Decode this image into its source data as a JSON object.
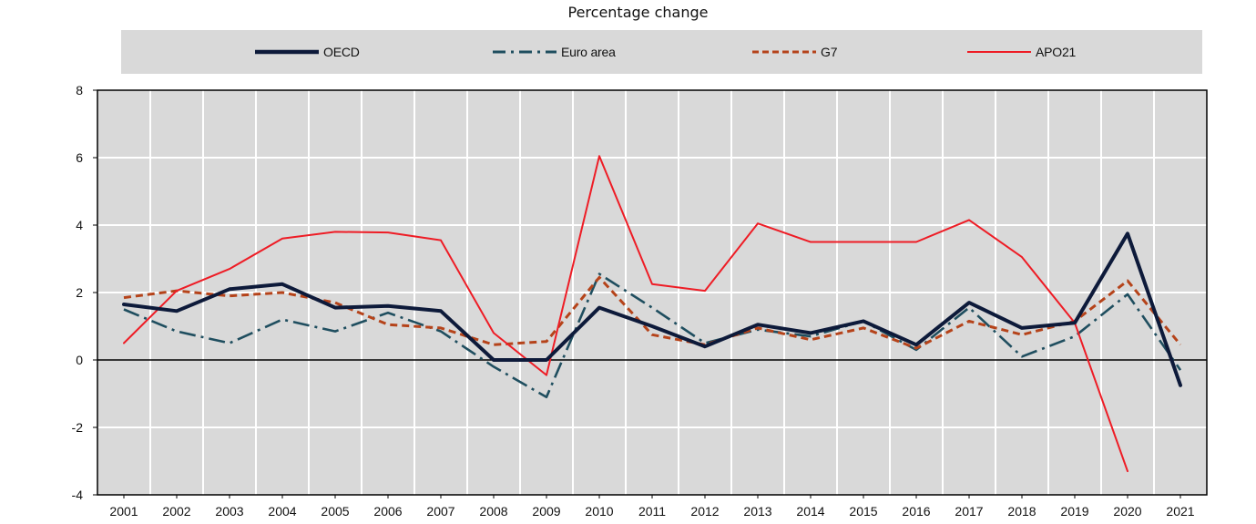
{
  "chart_data": {
    "type": "line",
    "title": "Percentage change",
    "xlabel": "",
    "ylabel": "",
    "x": [
      "2001",
      "2002",
      "2003",
      "2004",
      "2005",
      "2006",
      "2007",
      "2008",
      "2009",
      "2010",
      "2011",
      "2012",
      "2013",
      "2014",
      "2015",
      "2016",
      "2017",
      "2018",
      "2019",
      "2020",
      "2021"
    ],
    "ylim": [
      -4,
      8
    ],
    "yticks": [
      "8",
      "6",
      "4",
      "2",
      "0",
      "-2",
      "-4"
    ],
    "grid": true,
    "legend_position": "top",
    "series": [
      {
        "name": "OECD",
        "color": "#0d1a3a",
        "style": "solid-thick",
        "values": [
          1.65,
          1.45,
          2.1,
          2.25,
          1.55,
          1.6,
          1.45,
          0.0,
          0.0,
          1.55,
          1.0,
          0.4,
          1.05,
          0.8,
          1.15,
          0.45,
          1.7,
          0.95,
          1.1,
          3.75,
          -0.75
        ]
      },
      {
        "name": "Euro area",
        "color": "#1f4e5f",
        "style": "dash-dot",
        "values": [
          1.5,
          0.85,
          0.5,
          1.2,
          0.85,
          1.4,
          0.85,
          -0.2,
          -1.1,
          2.55,
          1.55,
          0.5,
          0.9,
          0.7,
          1.15,
          0.3,
          1.55,
          0.1,
          0.7,
          1.95,
          -0.3
        ]
      },
      {
        "name": "G7",
        "color": "#b5431a",
        "style": "dashed",
        "values": [
          1.85,
          2.05,
          1.9,
          2.0,
          1.7,
          1.05,
          0.95,
          0.45,
          0.55,
          2.45,
          0.75,
          0.45,
          0.95,
          0.6,
          0.95,
          0.35,
          1.15,
          0.75,
          1.15,
          2.35,
          0.45
        ]
      },
      {
        "name": "APO21",
        "color": "#ee1c25",
        "style": "solid",
        "values": [
          0.5,
          2.05,
          2.7,
          3.6,
          3.8,
          3.78,
          3.55,
          0.8,
          -0.45,
          6.05,
          2.25,
          2.05,
          4.05,
          3.5,
          3.5,
          3.5,
          4.15,
          3.05,
          1.1,
          -3.3,
          null
        ]
      }
    ]
  }
}
